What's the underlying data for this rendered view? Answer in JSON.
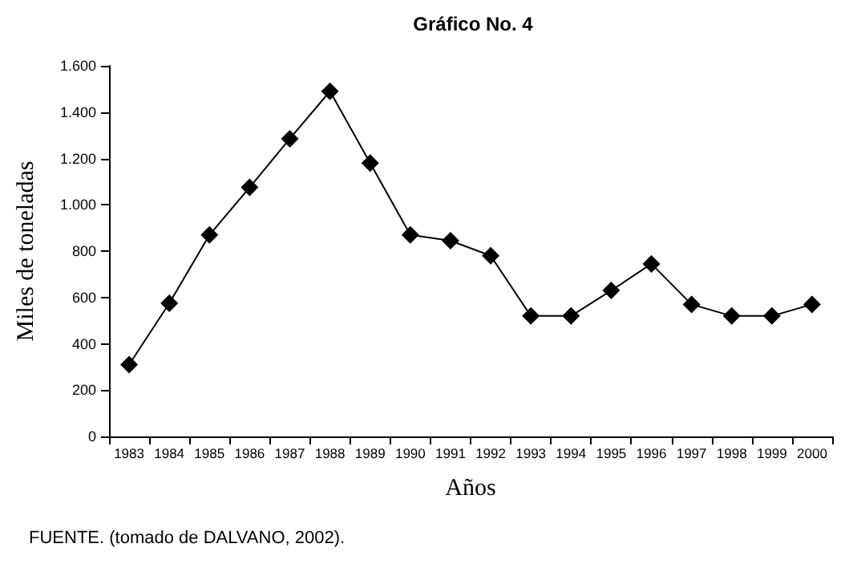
{
  "chart_data": {
    "type": "line",
    "title": "Gráfico No. 4",
    "xlabel": "Años",
    "ylabel": "Miles de toneladas",
    "annotations": [
      "FUENTE. (tomado de DALVANO, 2002)."
    ],
    "categories": [
      "1983",
      "1984",
      "1985",
      "1986",
      "1987",
      "1988",
      "1989",
      "1990",
      "1991",
      "1992",
      "1993",
      "1994",
      "1995",
      "1996",
      "1997",
      "1998",
      "1999",
      "2000"
    ],
    "series": [
      {
        "color": "#000000",
        "values": [
          310,
          575,
          870,
          1075,
          1285,
          1490,
          1180,
          870,
          845,
          780,
          520,
          520,
          630,
          745,
          570,
          520,
          520,
          570
        ]
      }
    ],
    "ylim": [
      0,
      1600
    ],
    "yticks": [
      0,
      200,
      400,
      600,
      800,
      {
        "value": 1000,
        "label": "1.000"
      },
      {
        "value": 1200,
        "label": "1.200"
      },
      {
        "value": 1400,
        "label": "1.400"
      },
      {
        "value": 1600,
        "label": "1.600"
      }
    ],
    "grid": false,
    "marker": "diamond",
    "line_style": "solid"
  }
}
